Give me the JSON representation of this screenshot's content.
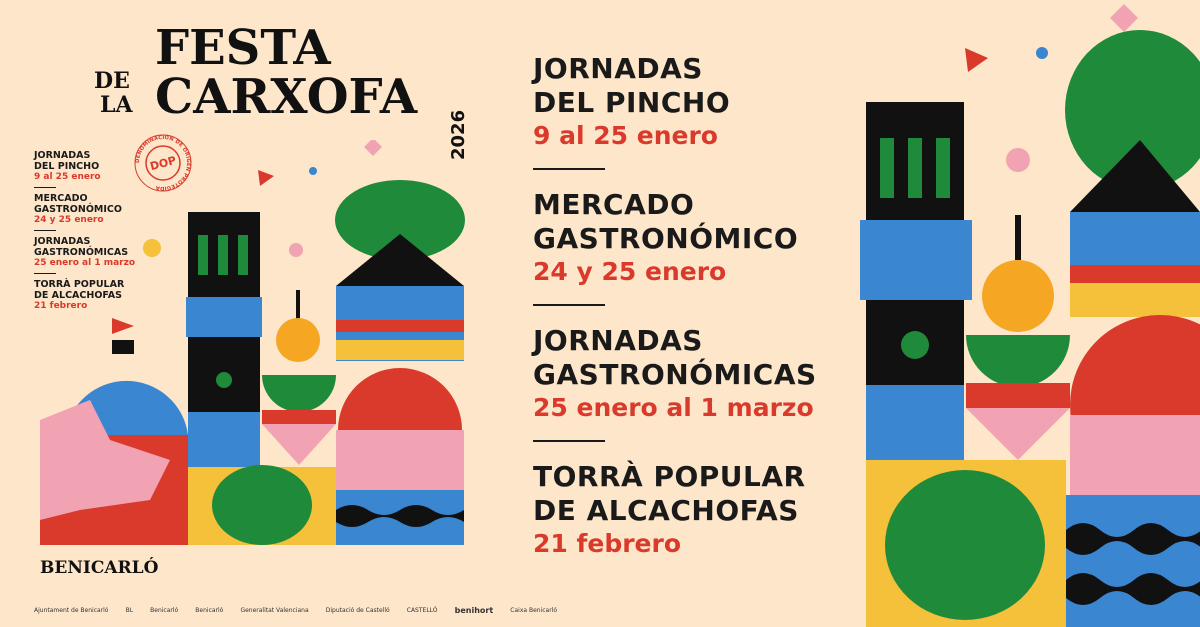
{
  "poster": {
    "title_line1": "FESTA",
    "title_de": "DE",
    "title_la": "LA",
    "title_line2": "CARXOFA",
    "year": "2026",
    "town": "BENICARLÓ",
    "dop_seal": {
      "center": "DOP",
      "ring": "DENOMINACIÓN DE ORIGEN PROTEGIDA"
    },
    "logos": [
      "Ajuntament de Benicarló",
      "BL",
      "Benicarló",
      "Benicarló",
      "",
      "",
      "Generalitat Valenciana",
      "",
      "",
      "Diputació de Castelló",
      "CASTELLÓ",
      "",
      "benihort",
      "Caixa Benicarló"
    ]
  },
  "events": [
    {
      "name_line1": "Jornadas",
      "name_line2": "del Pincho",
      "date": "9 al 25 enero"
    },
    {
      "name_line1": "Mercado",
      "name_line2": "Gastronómico",
      "date": "24 y 25 enero"
    },
    {
      "name_line1": "Jornadas",
      "name_line2": "Gastronómicas",
      "date": "25 enero al 1 marzo"
    },
    {
      "name_line1": "Torrà popular",
      "name_line2": "de alcachofas",
      "date": "21 febrero"
    }
  ],
  "colors": {
    "background": "#fde6c9",
    "red": "#d93a2b",
    "green": "#1f8a3a",
    "blue": "#3b86d0",
    "yellow": "#f5c03a",
    "pink": "#f2a3b3",
    "black": "#111111"
  }
}
